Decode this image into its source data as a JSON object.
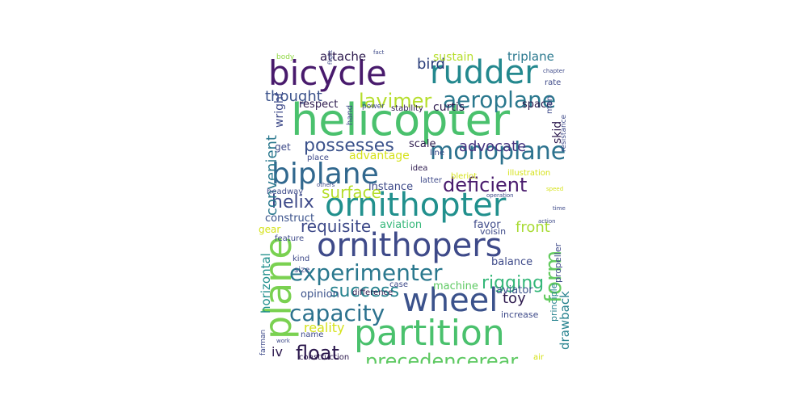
{
  "word_cloud": {
    "words": [
      {
        "text": "helicopter",
        "color": "#4ac16d"
      },
      {
        "text": "ornithopter",
        "color": "#21908d"
      },
      {
        "text": "ornithopers",
        "color": "#3e4a89"
      },
      {
        "text": "partition",
        "color": "#4ac16d"
      },
      {
        "text": "wheel",
        "color": "#3b528b"
      },
      {
        "text": "bicycle",
        "color": "#481a6c"
      },
      {
        "text": "rudder",
        "color": "#23888e"
      },
      {
        "text": "biplane",
        "color": "#31688e"
      },
      {
        "text": "plane",
        "color": "#7ad151"
      },
      {
        "text": "monoplane",
        "color": "#2c728e"
      },
      {
        "text": "experimenter",
        "color": "#2a788e"
      },
      {
        "text": "aeroplane",
        "color": "#2a788e"
      },
      {
        "text": "capacity",
        "color": "#2c728e"
      },
      {
        "text": "form",
        "color": "#63cb5f"
      },
      {
        "text": "deficient",
        "color": "#481a6c"
      },
      {
        "text": "precedencerear",
        "color": "#5ec962"
      },
      {
        "text": "lavimer",
        "color": "#b5de2b"
      },
      {
        "text": "possesses",
        "color": "#3b528b"
      },
      {
        "text": "float",
        "color": "#2d1a4e"
      },
      {
        "text": "helix",
        "color": "#3e4a89"
      },
      {
        "text": "surface",
        "color": "#b5de2b"
      },
      {
        "text": "success",
        "color": "#26828e"
      },
      {
        "text": "rigging",
        "color": "#35b779"
      },
      {
        "text": "requisite",
        "color": "#3e4a89"
      },
      {
        "text": "thought",
        "color": "#3b528b"
      },
      {
        "text": "bird",
        "color": "#2a3e7a"
      },
      {
        "text": "advocate",
        "color": "#463480"
      },
      {
        "text": "convenient",
        "color": "#2a788e"
      },
      {
        "text": "front",
        "color": "#a8db34"
      },
      {
        "text": "toy",
        "color": "#2d1a4e"
      },
      {
        "text": "reality",
        "color": "#d5e21a"
      },
      {
        "text": "triplane",
        "color": "#2a788e"
      },
      {
        "text": "attache",
        "color": "#2d1a4e"
      },
      {
        "text": "curtis",
        "color": "#2d1a4e"
      },
      {
        "text": "iv",
        "color": "#2d1a4e"
      },
      {
        "text": "drawback",
        "color": "#26828e"
      },
      {
        "text": "horizontal",
        "color": "#21908d"
      },
      {
        "text": "advantage",
        "color": "#d5e21a"
      },
      {
        "text": "sustain",
        "color": "#b5de2b"
      },
      {
        "text": "wright",
        "color": "#3e4a89"
      },
      {
        "text": "opinion",
        "color": "#3b528b"
      },
      {
        "text": "construct",
        "color": "#3b528b"
      },
      {
        "text": "machine",
        "color": "#5ec962"
      },
      {
        "text": "balance",
        "color": "#3e4a89"
      },
      {
        "text": "aviator",
        "color": "#3b528b"
      },
      {
        "text": "skid",
        "color": "#2d1a4e"
      },
      {
        "text": "scale",
        "color": "#2d1a4e"
      },
      {
        "text": "space",
        "color": "#2d1a4e"
      },
      {
        "text": "respect",
        "color": "#2d1a4e"
      },
      {
        "text": "instance",
        "color": "#3e4a89"
      },
      {
        "text": "aviation",
        "color": "#35b779"
      },
      {
        "text": "favor",
        "color": "#3e4a89"
      },
      {
        "text": "gear",
        "color": "#d5e21a"
      },
      {
        "text": "get",
        "color": "#3e4a89"
      },
      {
        "text": "propeller",
        "color": "#3e4a89"
      },
      {
        "text": "man",
        "color": "#3e4a89"
      },
      {
        "text": "voisin",
        "color": "#3e4a89"
      },
      {
        "text": "increase",
        "color": "#3e4a89"
      },
      {
        "text": "principle",
        "color": "#26828e"
      },
      {
        "text": "construction",
        "color": "#2d1a4e"
      },
      {
        "text": "feature",
        "color": "#3e4a89"
      },
      {
        "text": "size",
        "color": "#3e4a89"
      },
      {
        "text": "kind",
        "color": "#3e4a89"
      },
      {
        "text": "name",
        "color": "#3e4a89"
      },
      {
        "text": "case",
        "color": "#3e4a89"
      },
      {
        "text": "difference",
        "color": "#2d1a4e"
      },
      {
        "text": "idea",
        "color": "#2d1a4e"
      },
      {
        "text": "latter",
        "color": "#3e4a89"
      },
      {
        "text": "bleriot",
        "color": "#d5e21a"
      },
      {
        "text": "illustration",
        "color": "#d5e21a"
      },
      {
        "text": "line",
        "color": "#3e4a89"
      },
      {
        "text": "place",
        "color": "#3e4a89"
      },
      {
        "text": "headway",
        "color": "#3e4a89"
      },
      {
        "text": "hand",
        "color": "#3e4a89"
      },
      {
        "text": "stability",
        "color": "#2d1a4e"
      },
      {
        "text": "rate",
        "color": "#3e4a89"
      },
      {
        "text": "power",
        "color": "#3e4a89"
      },
      {
        "text": "resistance",
        "color": "#3e4a89"
      },
      {
        "text": "body",
        "color": "#8fd744"
      },
      {
        "text": "fact",
        "color": "#3e4a89"
      },
      {
        "text": "flight",
        "color": "#3e4a89"
      },
      {
        "text": "chapter",
        "color": "#3e4a89"
      },
      {
        "text": "others",
        "color": "#3e4a89"
      },
      {
        "text": "operation",
        "color": "#3e4a89"
      },
      {
        "text": "speed",
        "color": "#d5e21a"
      },
      {
        "text": "time",
        "color": "#3e4a89"
      },
      {
        "text": "action",
        "color": "#3e4a89"
      },
      {
        "text": "farman",
        "color": "#3e4a89"
      },
      {
        "text": "work",
        "color": "#3e4a89"
      },
      {
        "text": "air",
        "color": "#d5e21a"
      }
    ]
  }
}
